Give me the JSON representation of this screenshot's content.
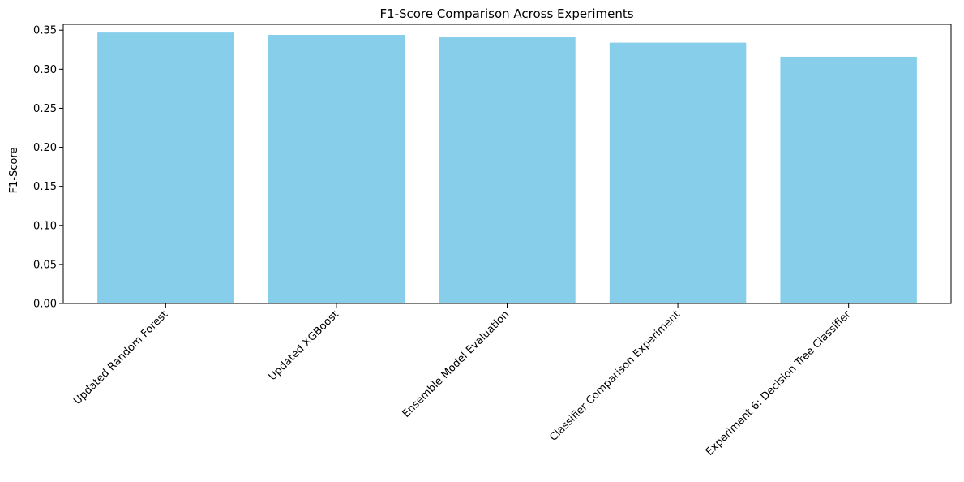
{
  "chart_data": {
    "type": "bar",
    "title": "F1-Score Comparison Across Experiments",
    "xlabel": "",
    "ylabel": "F1-Score",
    "categories": [
      "Updated Random Forest",
      "Updated XGBoost",
      "Ensemble Model Evaluation",
      "Classifier Comparison Experiment",
      "Experiment 6: Decision Tree Classifier"
    ],
    "values": [
      0.347,
      0.344,
      0.341,
      0.334,
      0.316
    ],
    "ylim": [
      0,
      0.3575
    ],
    "yticks": [
      0.0,
      0.05,
      0.1,
      0.15,
      0.2,
      0.25,
      0.3,
      0.35
    ],
    "ytick_labels": [
      "0.00",
      "0.05",
      "0.10",
      "0.15",
      "0.20",
      "0.25",
      "0.30",
      "0.35"
    ],
    "grid": false,
    "legend": "none",
    "bar_color": "#87CEEB",
    "axis_color": "#000000"
  }
}
